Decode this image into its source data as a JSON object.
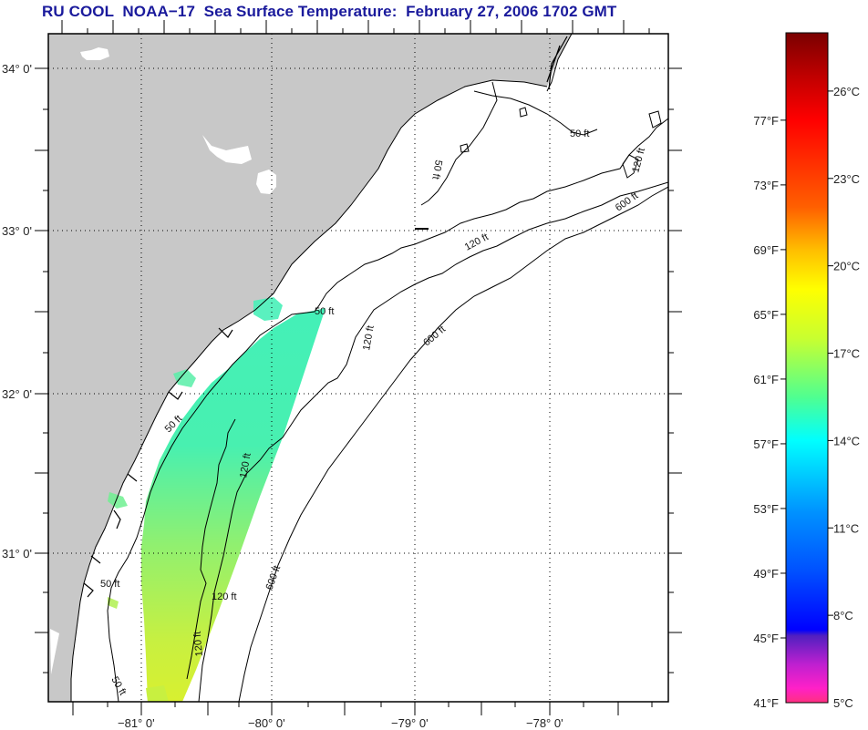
{
  "title": "RU COOL  NOAA−17  Sea Surface Temperature:  February 27, 2006 1702 GMT",
  "colors": {
    "title": "#1a1a9c",
    "land": "#c8c8c8",
    "ocean": "#ffffff",
    "frame": "#000000"
  },
  "map": {
    "latitude_labels": [
      "34° 0'",
      "33° 0'",
      "32° 0'",
      "31° 0'"
    ],
    "longitude_labels": [
      "−81° 0'",
      "−80° 0'",
      "−79° 0'",
      "−78° 0'"
    ],
    "contour_labels": [
      {
        "id": "c50a",
        "text": "50 ft"
      },
      {
        "id": "c50b",
        "text": "50 ft"
      },
      {
        "id": "c50c",
        "text": "50 ft"
      },
      {
        "id": "c50d",
        "text": "50 ft"
      },
      {
        "id": "c50e",
        "text": "50 ft"
      },
      {
        "id": "c50f",
        "text": "50 ft"
      },
      {
        "id": "c120a",
        "text": "120 ft"
      },
      {
        "id": "c120b",
        "text": "120 ft"
      },
      {
        "id": "c120c",
        "text": "120 ft"
      },
      {
        "id": "c120d",
        "text": "120 ft"
      },
      {
        "id": "c120e",
        "text": "120 ft"
      },
      {
        "id": "c120f",
        "text": "120 ft"
      },
      {
        "id": "c600a",
        "text": "600 ft"
      },
      {
        "id": "c600b",
        "text": "600 ft"
      },
      {
        "id": "c600c",
        "text": "600 ft"
      }
    ]
  },
  "colorbar": {
    "fahrenheit_labels": [
      "77°F",
      "73°F",
      "69°F",
      "65°F",
      "61°F",
      "57°F",
      "53°F",
      "49°F",
      "45°F",
      "41°F"
    ],
    "celsius_labels": [
      "26°C",
      "23°C",
      "20°C",
      "17°C",
      "14°C",
      "11°C",
      "8°C",
      "5°C"
    ],
    "range_celsius": [
      5,
      28
    ],
    "stops": [
      {
        "c": 28,
        "color": "#7a0000"
      },
      {
        "c": 26.5,
        "color": "#c00000"
      },
      {
        "c": 25,
        "color": "#ff0000"
      },
      {
        "c": 22,
        "color": "#ff6000"
      },
      {
        "c": 20.5,
        "color": "#ffc000"
      },
      {
        "c": 19.2,
        "color": "#ffff00"
      },
      {
        "c": 17.5,
        "color": "#c8ff30"
      },
      {
        "c": 15.5,
        "color": "#50ff90"
      },
      {
        "c": 14,
        "color": "#00ffff"
      },
      {
        "c": 11.5,
        "color": "#0090ff"
      },
      {
        "c": 9.5,
        "color": "#0050ff"
      },
      {
        "c": 7.5,
        "color": "#0000ff"
      },
      {
        "c": 7.3,
        "color": "#5020c0"
      },
      {
        "c": 6.3,
        "color": "#c020d0"
      },
      {
        "c": 5.5,
        "color": "#ff20c8"
      },
      {
        "c": 5,
        "color": "#ff3080"
      }
    ]
  }
}
